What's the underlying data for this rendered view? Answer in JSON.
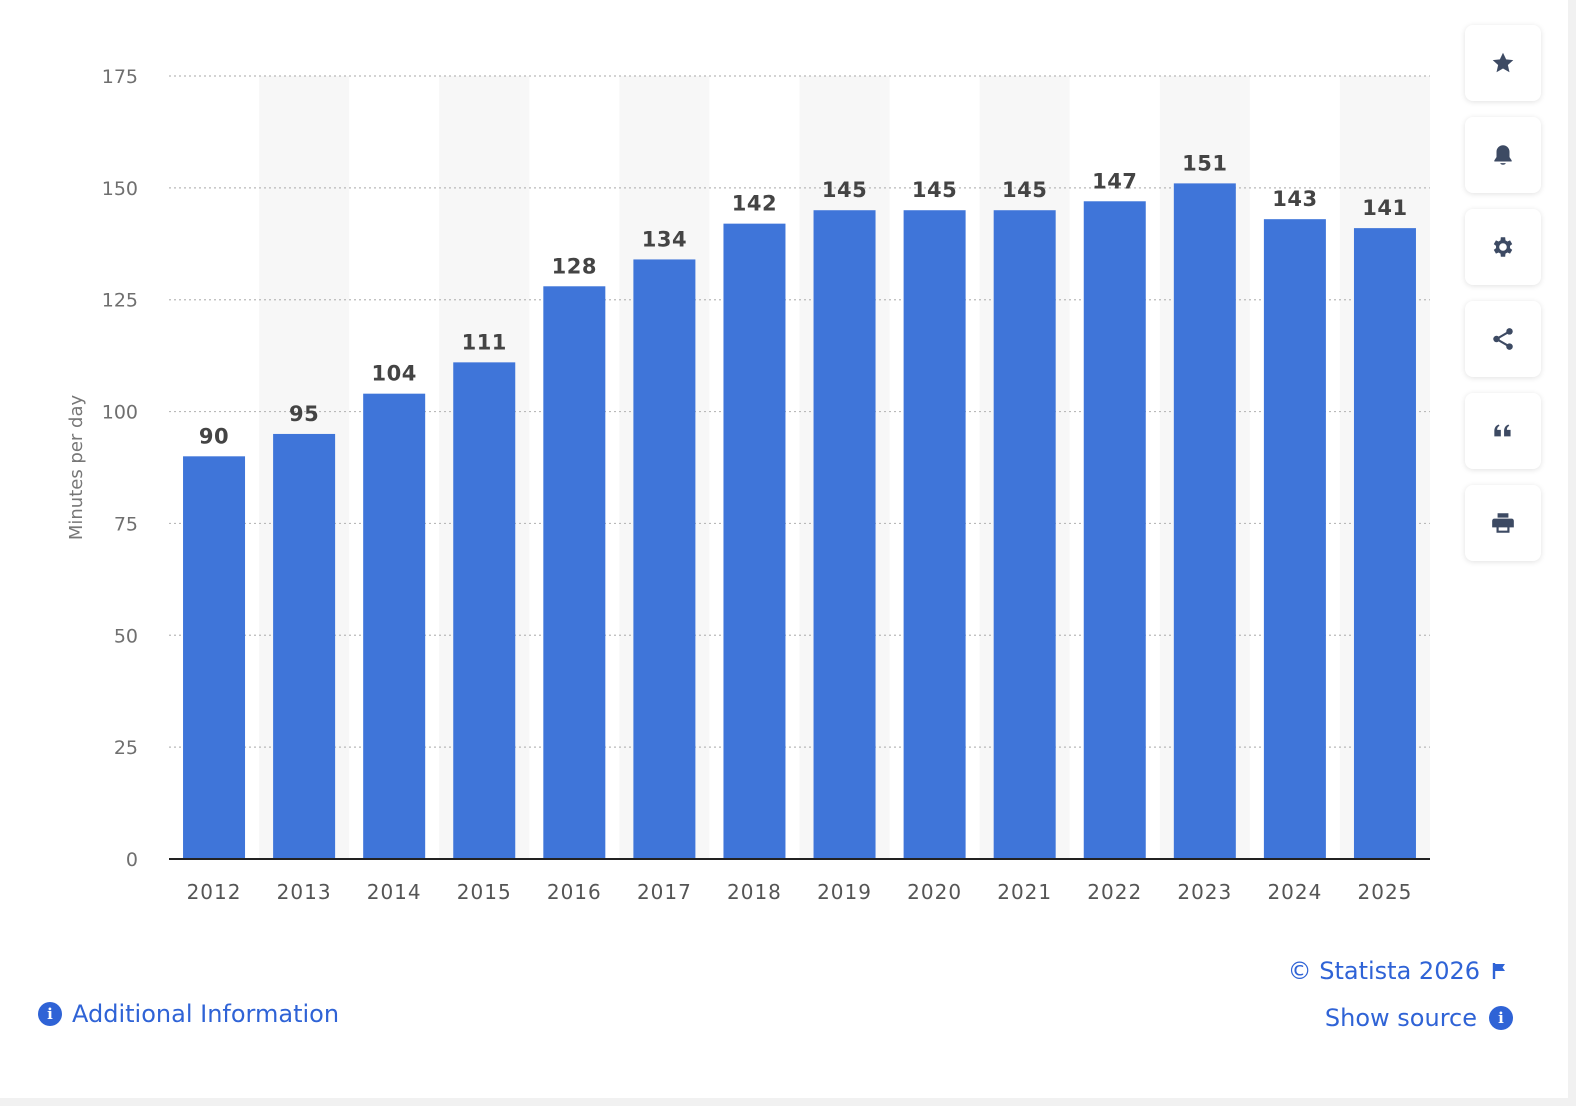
{
  "chart_data": {
    "type": "bar",
    "categories": [
      "2012",
      "2013",
      "2014",
      "2015",
      "2016",
      "2017",
      "2018",
      "2019",
      "2020",
      "2021",
      "2022",
      "2023",
      "2024",
      "2025"
    ],
    "values": [
      90,
      95,
      104,
      111,
      128,
      134,
      142,
      145,
      145,
      145,
      147,
      151,
      143,
      141
    ],
    "data_labels": [
      "90",
      "95",
      "104",
      "111",
      "128",
      "134",
      "142",
      "145",
      "145",
      "145",
      "147",
      "151",
      "143",
      "141"
    ],
    "title": "",
    "xlabel": "",
    "ylabel": "Minutes per day",
    "ylim": [
      0,
      175
    ],
    "yticks": [
      0,
      25,
      50,
      75,
      100,
      125,
      150,
      175
    ],
    "grid": true,
    "bar_color": "#3f75d9"
  },
  "toolbar": [
    {
      "name": "star-icon"
    },
    {
      "name": "bell-icon"
    },
    {
      "name": "gear-icon"
    },
    {
      "name": "share-icon"
    },
    {
      "name": "quote-icon"
    },
    {
      "name": "print-icon"
    }
  ],
  "footer": {
    "additional_info": "Additional Information",
    "copyright": "© Statista 2026",
    "show_source": "Show source"
  },
  "colors": {
    "accent": "#2f63d6",
    "bar": "#3f75d9",
    "icon": "#3d4a63"
  }
}
